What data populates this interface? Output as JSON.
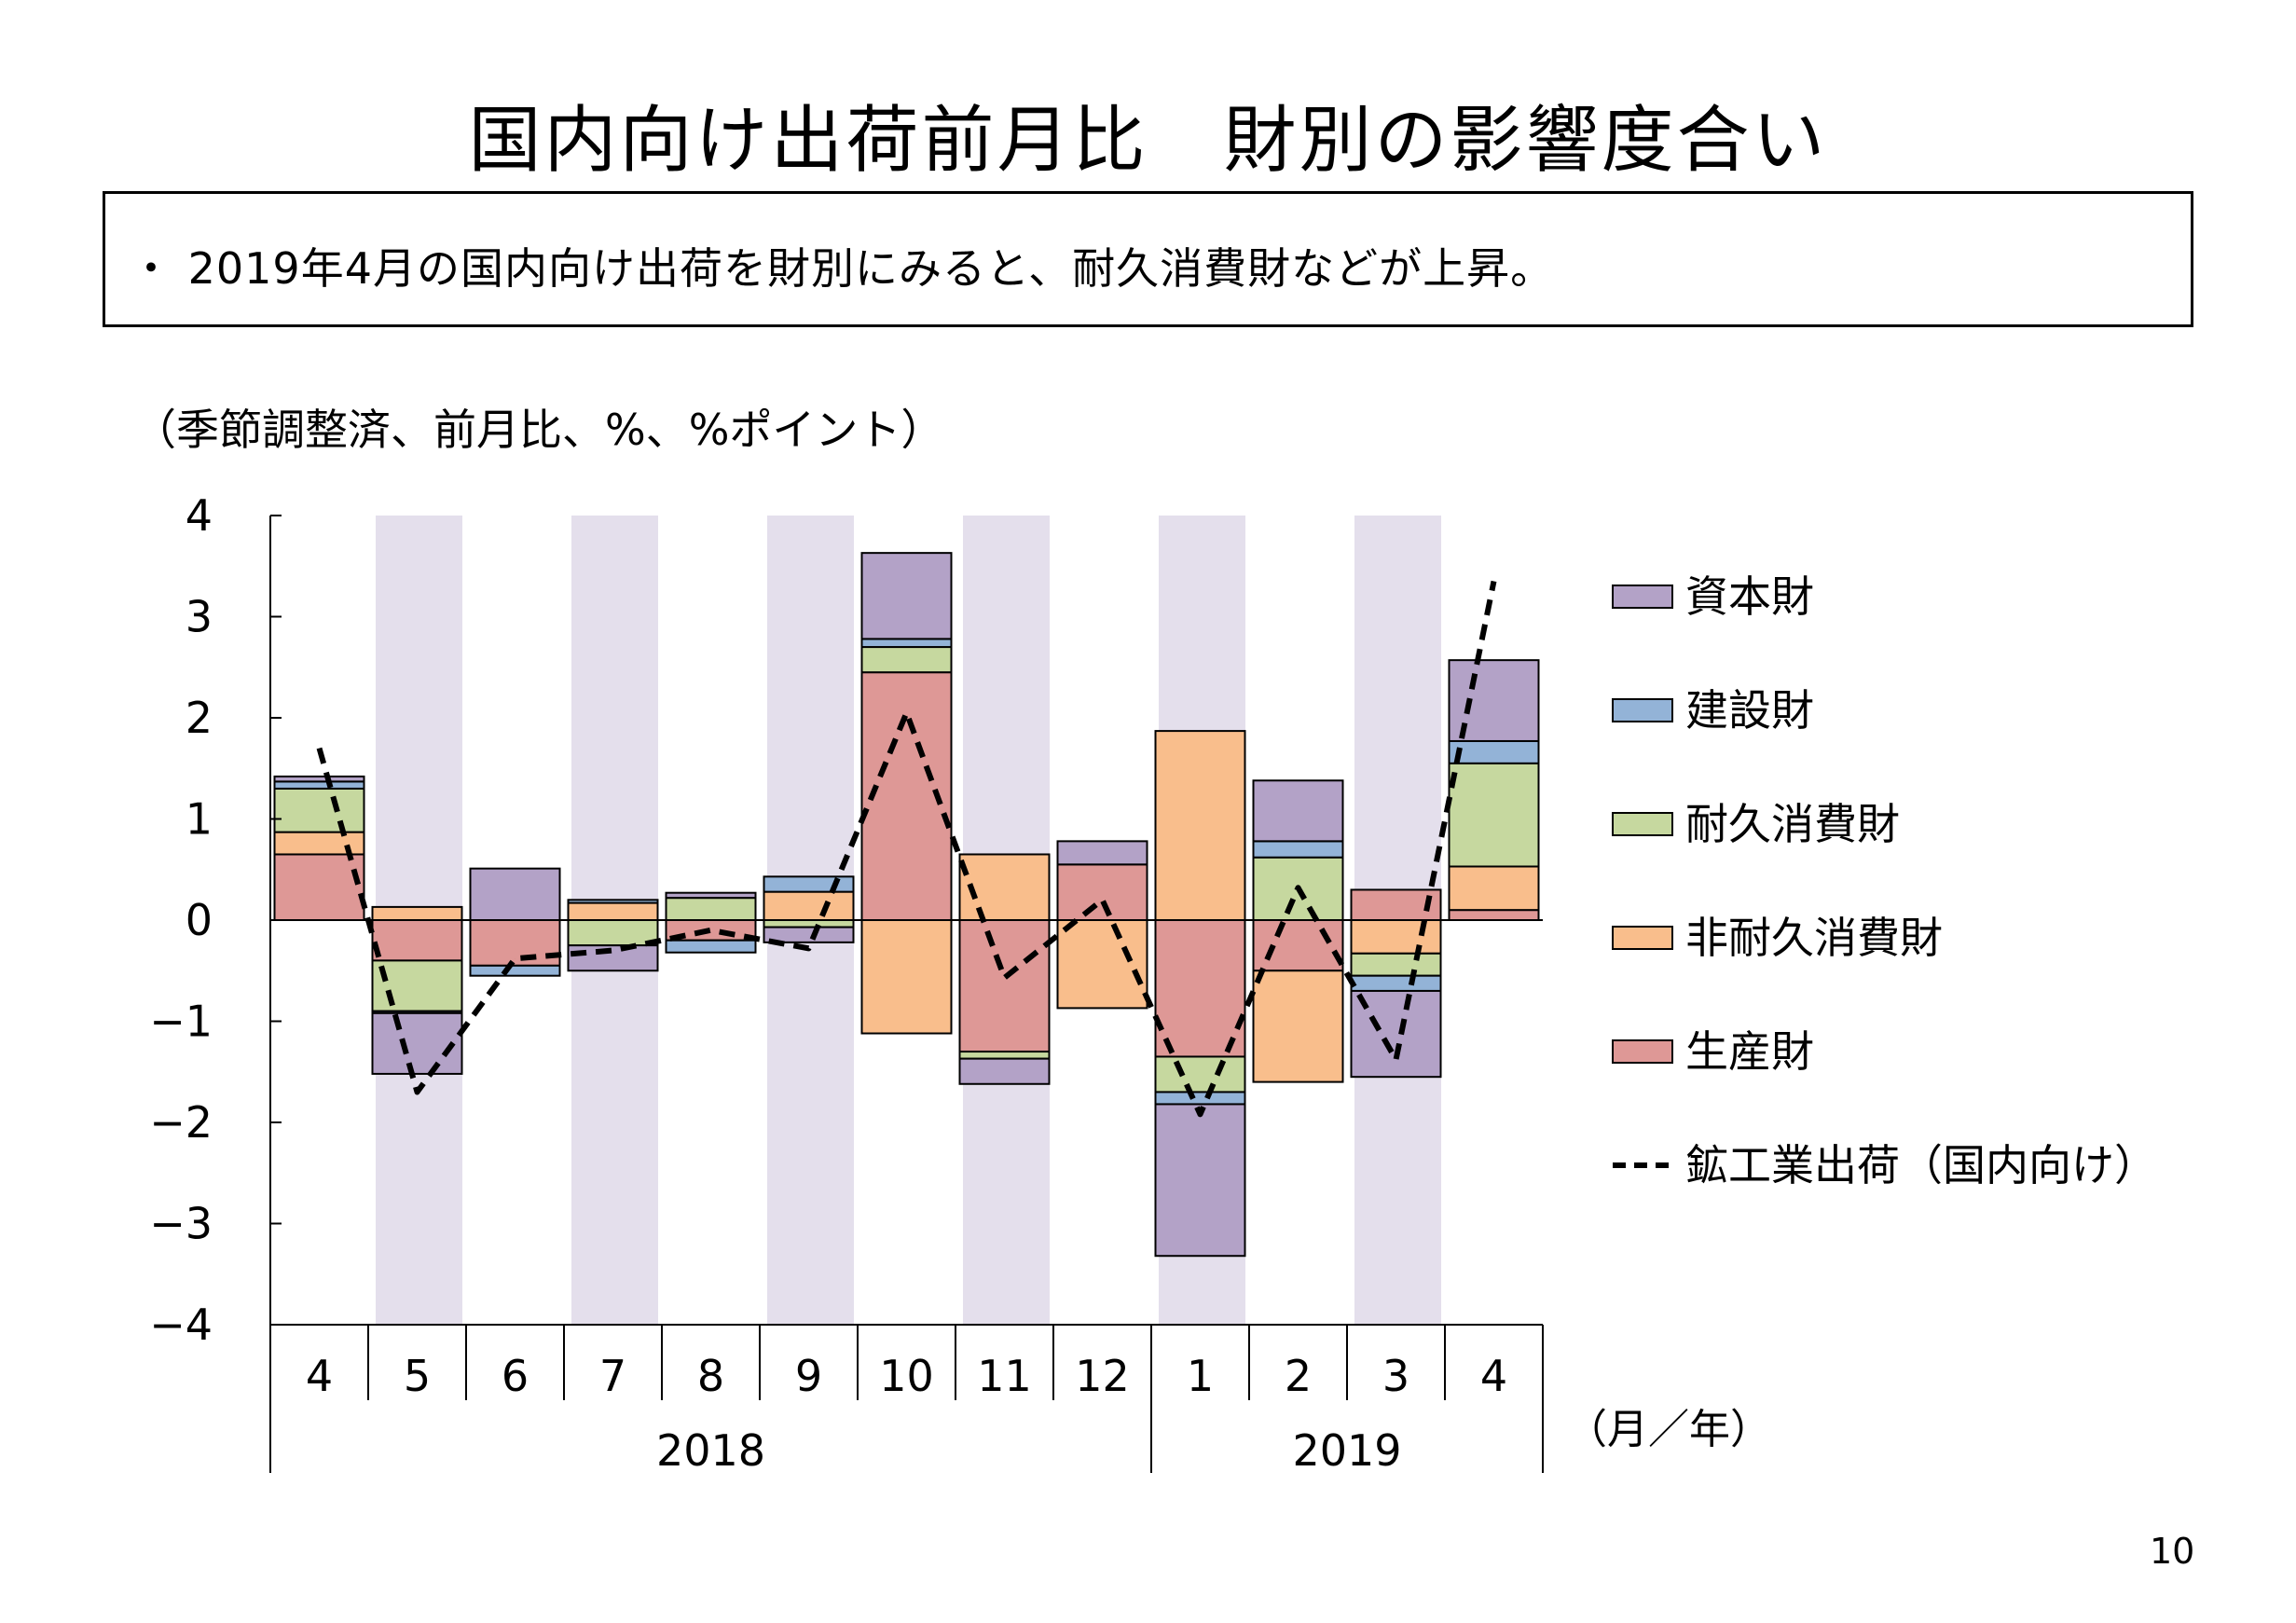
{
  "page": {
    "title": "国内向け出荷前月比　財別の影響度合い",
    "summary": "・ 2019年4月の国内向け出荷を財別にみると、耐久消費財などが上昇。",
    "unit_note": "（季節調整済、前月比、%、%ポイント）",
    "page_number": "10"
  },
  "chart_data": {
    "type": "bar",
    "stacked": true,
    "categories": [
      "4",
      "5",
      "6",
      "7",
      "8",
      "9",
      "10",
      "11",
      "12",
      "1",
      "2",
      "3",
      "4"
    ],
    "year_groups": [
      {
        "label": "2018",
        "start": 0,
        "end": 8
      },
      {
        "label": "2019",
        "start": 9,
        "end": 12
      }
    ],
    "xunit": "（月／年）",
    "ylim": [
      -4,
      4
    ],
    "yticks": [
      4,
      3,
      2,
      1,
      0,
      -1,
      -2,
      -3,
      -4
    ],
    "ytick_labels": [
      "4",
      "3",
      "2",
      "1",
      "0",
      "−1",
      "−2",
      "−3",
      "−4"
    ],
    "shaded_columns": [
      1,
      3,
      5,
      7,
      9,
      11
    ],
    "series": [
      {
        "name": "生産財",
        "color": "#de9896",
        "values": [
          0.65,
          -0.4,
          -0.45,
          0.0,
          -0.2,
          0.0,
          2.45,
          -1.3,
          0.55,
          -1.35,
          -0.5,
          0.3,
          0.1
        ]
      },
      {
        "name": "非耐久消費財",
        "color": "#f9be8c",
        "values": [
          0.22,
          0.13,
          0.0,
          0.17,
          0.0,
          0.28,
          -1.12,
          0.65,
          -0.87,
          1.87,
          -1.1,
          -0.33,
          0.43
        ]
      },
      {
        "name": "耐久消費財",
        "color": "#c6d89f",
        "values": [
          0.43,
          -0.5,
          0.0,
          -0.25,
          0.22,
          -0.07,
          0.25,
          -0.07,
          0.0,
          -0.35,
          0.62,
          -0.22,
          1.02
        ]
      },
      {
        "name": "建設財",
        "color": "#93b3d7",
        "values": [
          0.07,
          -0.02,
          -0.1,
          0.03,
          -0.12,
          0.15,
          0.08,
          0.0,
          0.0,
          -0.12,
          0.16,
          -0.15,
          0.22
        ]
      },
      {
        "name": "資本財",
        "color": "#b3a2c7",
        "values": [
          0.05,
          -0.6,
          0.51,
          -0.25,
          0.05,
          -0.15,
          0.85,
          -0.25,
          0.23,
          -1.5,
          0.6,
          -0.85,
          0.8
        ]
      }
    ],
    "line": {
      "name": "鉱工業出荷（国内向け）",
      "color": "#000000",
      "dashed": true,
      "values": [
        1.7,
        -1.7,
        -0.38,
        -0.3,
        -0.1,
        -0.28,
        2.05,
        -0.57,
        0.2,
        -1.92,
        0.32,
        -1.38,
        3.35
      ]
    },
    "legend_placement": "right"
  }
}
